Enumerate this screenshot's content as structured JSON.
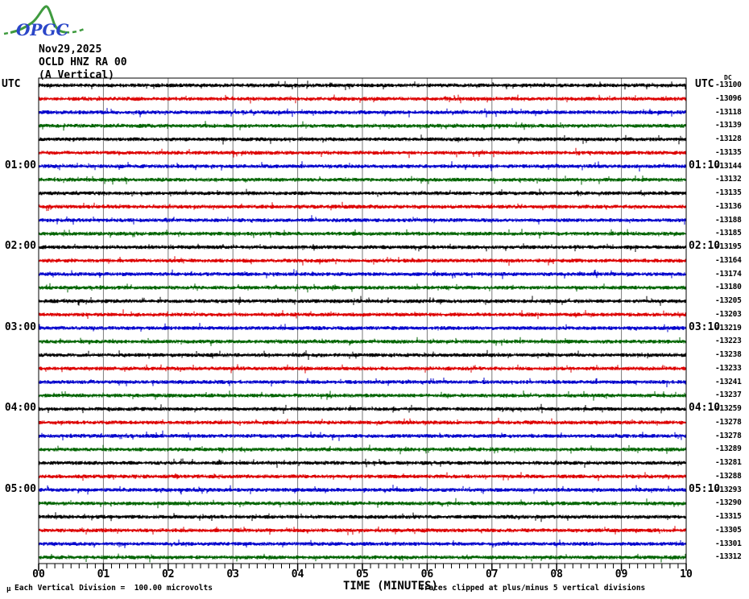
{
  "logo": {
    "text": "OPGC"
  },
  "header": {
    "date": "Nov29,2025",
    "station": "OCLD HNZ RA 00",
    "component": "(A Vertical)"
  },
  "axis": {
    "utc_left": "UTC",
    "utc_right": "UTC",
    "dc_label": "DC",
    "left_hours": [
      {
        "row": 6,
        "label": "01:00"
      },
      {
        "row": 12,
        "label": "02:00"
      },
      {
        "row": 18,
        "label": "03:00"
      },
      {
        "row": 24,
        "label": "04:00"
      },
      {
        "row": 30,
        "label": "05:00"
      }
    ],
    "right_hours": [
      {
        "row": 6,
        "label": "01:10"
      },
      {
        "row": 12,
        "label": "02:10"
      },
      {
        "row": 18,
        "label": "03:10"
      },
      {
        "row": 24,
        "label": "04:10"
      },
      {
        "row": 30,
        "label": "05:10"
      }
    ],
    "x_tick_labels": [
      "00",
      "01",
      "02",
      "03",
      "04",
      "05",
      "06",
      "07",
      "08",
      "09",
      "10"
    ],
    "x_title": "TIME (MINUTES)"
  },
  "footer": {
    "scale_note": "Each Vertical Division =  100.00 microvolts",
    "clip_note": "Traces clipped at plus/minus 5 vertical divisions",
    "corner_mark": "µ"
  },
  "colors": {
    "trace_cycle": [
      "#000000",
      "#dd0000",
      "#0000cc",
      "#006400"
    ],
    "grid": "#7a7a7a",
    "frame": "#000000",
    "logo_green": "#3f9b3f",
    "logo_blue": "#2b46c8"
  },
  "chart_data": {
    "type": "line",
    "subtype": "helicorder-seismogram",
    "title": "OCLD HNZ RA 00 (A Vertical) Nov29,2025",
    "xlabel": "TIME (MINUTES)",
    "x_range_minutes": [
      0,
      10
    ],
    "x_major_tick_step_minutes": 1,
    "x_minor_ticks_between_major": 7,
    "minutes_per_trace": 10,
    "traces_per_hour": 6,
    "vertical_division_microvolts": 100.0,
    "clip_divisions": 5,
    "grid": "vertical gridlines each minute",
    "legend_position": "none",
    "traces": [
      {
        "start": "00:00",
        "dc": -13100
      },
      {
        "start": "00:10",
        "dc": -13096
      },
      {
        "start": "00:20",
        "dc": -13118
      },
      {
        "start": "00:30",
        "dc": -13139
      },
      {
        "start": "00:40",
        "dc": -13128
      },
      {
        "start": "00:50",
        "dc": -13135
      },
      {
        "start": "01:00",
        "dc": -13144
      },
      {
        "start": "01:10",
        "dc": -13132
      },
      {
        "start": "01:20",
        "dc": -13135
      },
      {
        "start": "01:30",
        "dc": -13136
      },
      {
        "start": "01:40",
        "dc": -13188
      },
      {
        "start": "01:50",
        "dc": -13185
      },
      {
        "start": "02:00",
        "dc": -13195
      },
      {
        "start": "02:10",
        "dc": -13164
      },
      {
        "start": "02:20",
        "dc": -13174
      },
      {
        "start": "02:30",
        "dc": -13180
      },
      {
        "start": "02:40",
        "dc": -13205
      },
      {
        "start": "02:50",
        "dc": -13203
      },
      {
        "start": "03:00",
        "dc": -13219
      },
      {
        "start": "03:10",
        "dc": -13223
      },
      {
        "start": "03:20",
        "dc": -13238
      },
      {
        "start": "03:30",
        "dc": -13233
      },
      {
        "start": "03:40",
        "dc": -13241
      },
      {
        "start": "03:50",
        "dc": -13237
      },
      {
        "start": "04:00",
        "dc": -13259
      },
      {
        "start": "04:10",
        "dc": -13278
      },
      {
        "start": "04:20",
        "dc": -13278
      },
      {
        "start": "04:30",
        "dc": -13289
      },
      {
        "start": "04:40",
        "dc": -13281
      },
      {
        "start": "04:50",
        "dc": -13288
      },
      {
        "start": "05:00",
        "dc": -13293
      },
      {
        "start": "05:10",
        "dc": -13290
      },
      {
        "start": "05:20",
        "dc": -13315
      },
      {
        "start": "05:30",
        "dc": -13305
      },
      {
        "start": "05:40",
        "dc": -13301
      },
      {
        "start": "05:50",
        "dc": -13312
      }
    ],
    "waveform_note": "continuous background noise, typical peak-to-peak about 0.5 vertical division with sparse larger spikes"
  }
}
